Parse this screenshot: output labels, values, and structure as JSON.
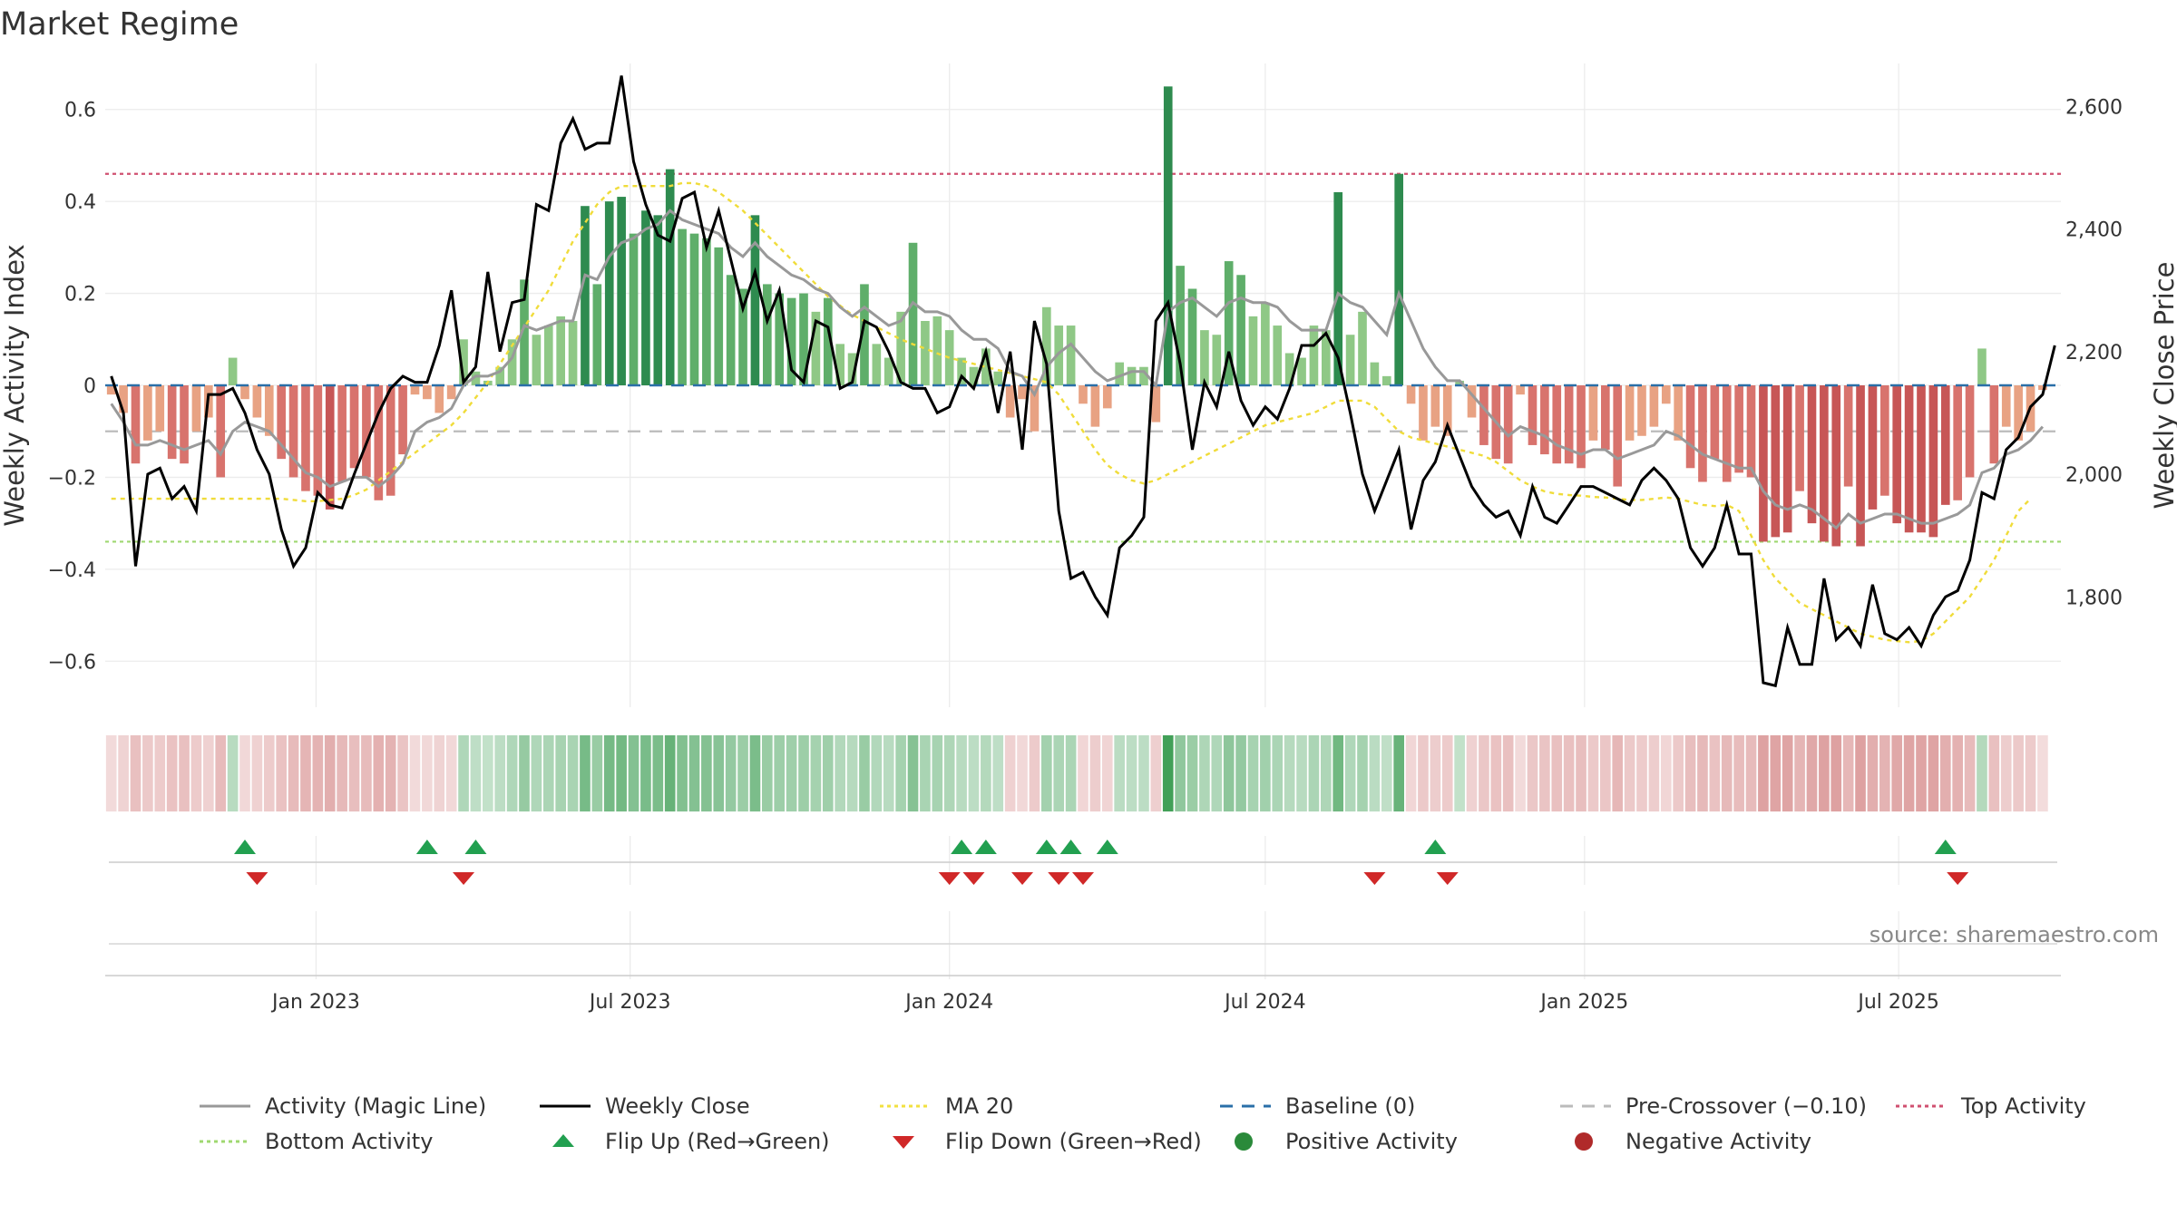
{
  "title": "Market Regime",
  "source": "source: sharemaestro.com",
  "chart_data": {
    "type": "bar",
    "title": "Market Regime",
    "ylabel": "Weekly Activity Index",
    "y2label": "Weekly Close Price",
    "ylim": [
      -0.7,
      0.7
    ],
    "y2lim": [
      1620,
      2670
    ],
    "yticks": [
      -0.6,
      -0.4,
      -0.2,
      0,
      0.2,
      0.4,
      0.6
    ],
    "ytick_labels": [
      "−0.6",
      "−0.4",
      "−0.2",
      "0",
      "0.2",
      "0.4",
      "0.6"
    ],
    "y2ticks": [
      1800,
      2000,
      2200,
      2400,
      2600
    ],
    "y2tick_labels": [
      "1,800",
      "2,000",
      "2,200",
      "2,400",
      "2,600"
    ],
    "x_start": "2022-09-05",
    "x_interval_days": 7,
    "x_end": "2025-09-29",
    "xticks": [
      "2023-01-01",
      "2023-07-01",
      "2024-01-01",
      "2024-07-01",
      "2025-01-01",
      "2025-07-01"
    ],
    "xtick_labels": [
      "Jan 2023",
      "Jul 2023",
      "Jan 2024",
      "Jul 2024",
      "Jan 2025",
      "Jul 2025"
    ],
    "grid": true,
    "legend_position": "bottom",
    "reference_lines": {
      "baseline": 0,
      "pre_crossover": -0.1,
      "top_activity": 0.46,
      "bottom_activity": -0.34
    },
    "activity_index": [
      -0.02,
      -0.06,
      -0.17,
      -0.12,
      -0.1,
      -0.16,
      -0.17,
      -0.1,
      -0.07,
      -0.2,
      0.06,
      -0.03,
      -0.07,
      -0.11,
      -0.16,
      -0.2,
      -0.23,
      -0.24,
      -0.27,
      -0.21,
      -0.18,
      -0.2,
      -0.25,
      -0.24,
      -0.15,
      -0.02,
      -0.03,
      -0.06,
      -0.03,
      0.1,
      0.03,
      0.01,
      0.04,
      0.1,
      0.23,
      0.11,
      0.13,
      0.15,
      0.14,
      0.39,
      0.22,
      0.4,
      0.41,
      0.33,
      0.38,
      0.37,
      0.47,
      0.34,
      0.33,
      0.32,
      0.3,
      0.24,
      0.21,
      0.37,
      0.22,
      0.2,
      0.19,
      0.2,
      0.16,
      0.19,
      0.09,
      0.07,
      0.22,
      0.09,
      0.06,
      0.16,
      0.31,
      0.14,
      0.15,
      0.12,
      0.06,
      0.04,
      0.08,
      0.03,
      -0.07,
      -0.03,
      -0.1,
      0.17,
      0.13,
      0.13,
      -0.04,
      -0.09,
      -0.05,
      0.05,
      0.04,
      0.04,
      -0.08,
      0.65,
      0.26,
      0.21,
      0.12,
      0.11,
      0.27,
      0.24,
      0.15,
      0.18,
      0.13,
      0.07,
      0.06,
      0.13,
      0.12,
      0.42,
      0.11,
      0.16,
      0.05,
      0.02,
      0.46,
      -0.04,
      -0.12,
      -0.09,
      -0.11,
      0.01,
      -0.07,
      -0.13,
      -0.16,
      -0.17,
      -0.02,
      -0.13,
      -0.15,
      -0.17,
      -0.17,
      -0.18,
      -0.12,
      -0.14,
      -0.22,
      -0.12,
      -0.11,
      -0.09,
      -0.04,
      -0.12,
      -0.18,
      -0.21,
      -0.16,
      -0.21,
      -0.19,
      -0.2,
      -0.34,
      -0.33,
      -0.32,
      -0.23,
      -0.3,
      -0.34,
      -0.35,
      -0.22,
      -0.35,
      -0.27,
      -0.24,
      -0.3,
      -0.32,
      -0.32,
      -0.33,
      -0.26,
      -0.25,
      -0.2,
      0.08,
      -0.17,
      -0.09,
      -0.12,
      -0.1,
      -0.01
    ],
    "magic_line": [
      -0.04,
      -0.08,
      -0.13,
      -0.13,
      -0.12,
      -0.13,
      -0.14,
      -0.13,
      -0.12,
      -0.15,
      -0.1,
      -0.08,
      -0.09,
      -0.1,
      -0.13,
      -0.16,
      -0.19,
      -0.2,
      -0.22,
      -0.21,
      -0.2,
      -0.2,
      -0.22,
      -0.2,
      -0.17,
      -0.1,
      -0.08,
      -0.07,
      -0.05,
      0.0,
      0.02,
      0.02,
      0.03,
      0.06,
      0.13,
      0.12,
      0.13,
      0.14,
      0.14,
      0.24,
      0.23,
      0.28,
      0.31,
      0.32,
      0.34,
      0.35,
      0.38,
      0.36,
      0.35,
      0.34,
      0.33,
      0.3,
      0.28,
      0.31,
      0.28,
      0.26,
      0.24,
      0.23,
      0.21,
      0.2,
      0.17,
      0.15,
      0.17,
      0.15,
      0.13,
      0.14,
      0.18,
      0.16,
      0.16,
      0.15,
      0.12,
      0.1,
      0.1,
      0.08,
      0.03,
      0.02,
      -0.02,
      0.04,
      0.07,
      0.09,
      0.06,
      0.03,
      0.01,
      0.02,
      0.03,
      0.03,
      0.0,
      0.16,
      0.18,
      0.19,
      0.17,
      0.15,
      0.18,
      0.19,
      0.18,
      0.18,
      0.17,
      0.14,
      0.12,
      0.12,
      0.12,
      0.2,
      0.18,
      0.17,
      0.14,
      0.11,
      0.2,
      0.14,
      0.08,
      0.04,
      0.01,
      0.01,
      -0.02,
      -0.05,
      -0.08,
      -0.11,
      -0.09,
      -0.1,
      -0.11,
      -0.13,
      -0.14,
      -0.15,
      -0.14,
      -0.14,
      -0.16,
      -0.15,
      -0.14,
      -0.13,
      -0.1,
      -0.11,
      -0.13,
      -0.15,
      -0.16,
      -0.17,
      -0.18,
      -0.18,
      -0.23,
      -0.26,
      -0.27,
      -0.26,
      -0.27,
      -0.29,
      -0.31,
      -0.28,
      -0.3,
      -0.29,
      -0.28,
      -0.28,
      -0.29,
      -0.3,
      -0.3,
      -0.29,
      -0.28,
      -0.26,
      -0.19,
      -0.18,
      -0.15,
      -0.14,
      -0.12,
      -0.09
    ],
    "weekly_close": [
      2160,
      2100,
      1850,
      2000,
      2010,
      1960,
      1980,
      1940,
      2130,
      2130,
      2140,
      2100,
      2040,
      2000,
      1910,
      1850,
      1880,
      1970,
      1950,
      1945,
      2000,
      2050,
      2100,
      2140,
      2160,
      2150,
      2150,
      2210,
      2300,
      2150,
      2175,
      2330,
      2200,
      2280,
      2285,
      2440,
      2430,
      2540,
      2580,
      2530,
      2540,
      2540,
      2650,
      2510,
      2440,
      2390,
      2380,
      2450,
      2460,
      2370,
      2430,
      2350,
      2270,
      2330,
      2250,
      2300,
      2170,
      2150,
      2250,
      2240,
      2140,
      2150,
      2250,
      2240,
      2200,
      2150,
      2140,
      2140,
      2100,
      2110,
      2160,
      2140,
      2200,
      2100,
      2200,
      2040,
      2250,
      2180,
      1940,
      1830,
      1840,
      1800,
      1770,
      1880,
      1900,
      1930,
      2250,
      2280,
      2180,
      2040,
      2150,
      2110,
      2200,
      2120,
      2080,
      2110,
      2090,
      2140,
      2210,
      2210,
      2230,
      2190,
      2100,
      2000,
      1940,
      1990,
      2040,
      1910,
      1990,
      2020,
      2080,
      2030,
      1980,
      1950,
      1930,
      1940,
      1900,
      1980,
      1930,
      1920,
      1950,
      1980,
      1980,
      1970,
      1960,
      1950,
      1990,
      2010,
      1990,
      1960,
      1880,
      1850,
      1880,
      1950,
      1870,
      1870,
      1660,
      1655,
      1750,
      1690,
      1690,
      1830,
      1730,
      1750,
      1720,
      1820,
      1740,
      1730,
      1750,
      1720,
      1770,
      1800,
      1810,
      1860,
      1970,
      1960,
      2040,
      2060,
      2110,
      2130,
      2210
    ],
    "ma20": [
      1960,
      1960,
      1960,
      1960,
      1960,
      1960,
      1960,
      1960,
      1960,
      1960,
      1960,
      1960,
      1960,
      1960,
      1960,
      1958,
      1956,
      1956,
      1958,
      1960,
      1966,
      1975,
      1990,
      2005,
      2020,
      2035,
      2050,
      2065,
      2080,
      2100,
      2125,
      2150,
      2180,
      2210,
      2240,
      2270,
      2300,
      2340,
      2380,
      2410,
      2440,
      2460,
      2470,
      2470,
      2470,
      2470,
      2470,
      2475,
      2475,
      2470,
      2460,
      2445,
      2430,
      2410,
      2390,
      2370,
      2350,
      2330,
      2310,
      2290,
      2275,
      2260,
      2250,
      2240,
      2230,
      2220,
      2212,
      2205,
      2197,
      2190,
      2185,
      2180,
      2175,
      2170,
      2165,
      2160,
      2155,
      2150,
      2130,
      2100,
      2070,
      2040,
      2015,
      2000,
      1990,
      1985,
      1990,
      2000,
      2010,
      2020,
      2030,
      2040,
      2050,
      2060,
      2070,
      2080,
      2085,
      2090,
      2095,
      2100,
      2110,
      2120,
      2120,
      2120,
      2110,
      2090,
      2070,
      2060,
      2055,
      2050,
      2045,
      2040,
      2035,
      2030,
      2020,
      2005,
      1990,
      1980,
      1972,
      1968,
      1966,
      1965,
      1963,
      1962,
      1960,
      1958,
      1958,
      1960,
      1962,
      1960,
      1955,
      1950,
      1948,
      1950,
      1940,
      1900,
      1860,
      1830,
      1810,
      1790,
      1780,
      1770,
      1760,
      1750,
      1740,
      1735,
      1730,
      1728,
      1726,
      1728,
      1740,
      1760,
      1780,
      1800,
      1830,
      1860,
      1900,
      1940,
      1960
    ],
    "flip_up_dates": [
      "2022-11-21",
      "2023-03-06",
      "2023-04-03",
      "2024-01-08",
      "2024-01-22",
      "2024-02-26",
      "2024-03-11",
      "2024-04-01",
      "2024-10-07",
      "2025-07-28"
    ],
    "flip_down_dates": [
      "2022-11-28",
      "2023-03-27",
      "2024-01-01",
      "2024-01-15",
      "2024-02-12",
      "2024-03-04",
      "2024-03-18",
      "2024-09-02",
      "2024-10-14",
      "2025-08-04"
    ],
    "series": [
      {
        "name": "Activity (Magic Line)",
        "color": "#999999",
        "style": "solid"
      },
      {
        "name": "Weekly Close",
        "color": "#000000",
        "style": "solid"
      },
      {
        "name": "MA 20",
        "color": "#f2e040",
        "style": "dotted"
      },
      {
        "name": "Baseline (0)",
        "color": "#2a6fa8",
        "style": "dashed"
      },
      {
        "name": "Pre-Crossover (−0.10)",
        "color": "#bbbbbb",
        "style": "dashed"
      },
      {
        "name": "Top Activity",
        "color": "#d05070",
        "style": "dotted"
      },
      {
        "name": "Bottom Activity",
        "color": "#9fd870",
        "style": "dotted"
      },
      {
        "name": "Flip Up (Red→Green)",
        "color": "#22a050",
        "marker": "triangle-up"
      },
      {
        "name": "Flip Down (Green→Red)",
        "color": "#d02828",
        "marker": "triangle-down"
      },
      {
        "name": "Positive Activity",
        "color": "#2a8a3a",
        "marker": "circle"
      },
      {
        "name": "Negative Activity",
        "color": "#b02a2a",
        "marker": "circle"
      }
    ]
  }
}
